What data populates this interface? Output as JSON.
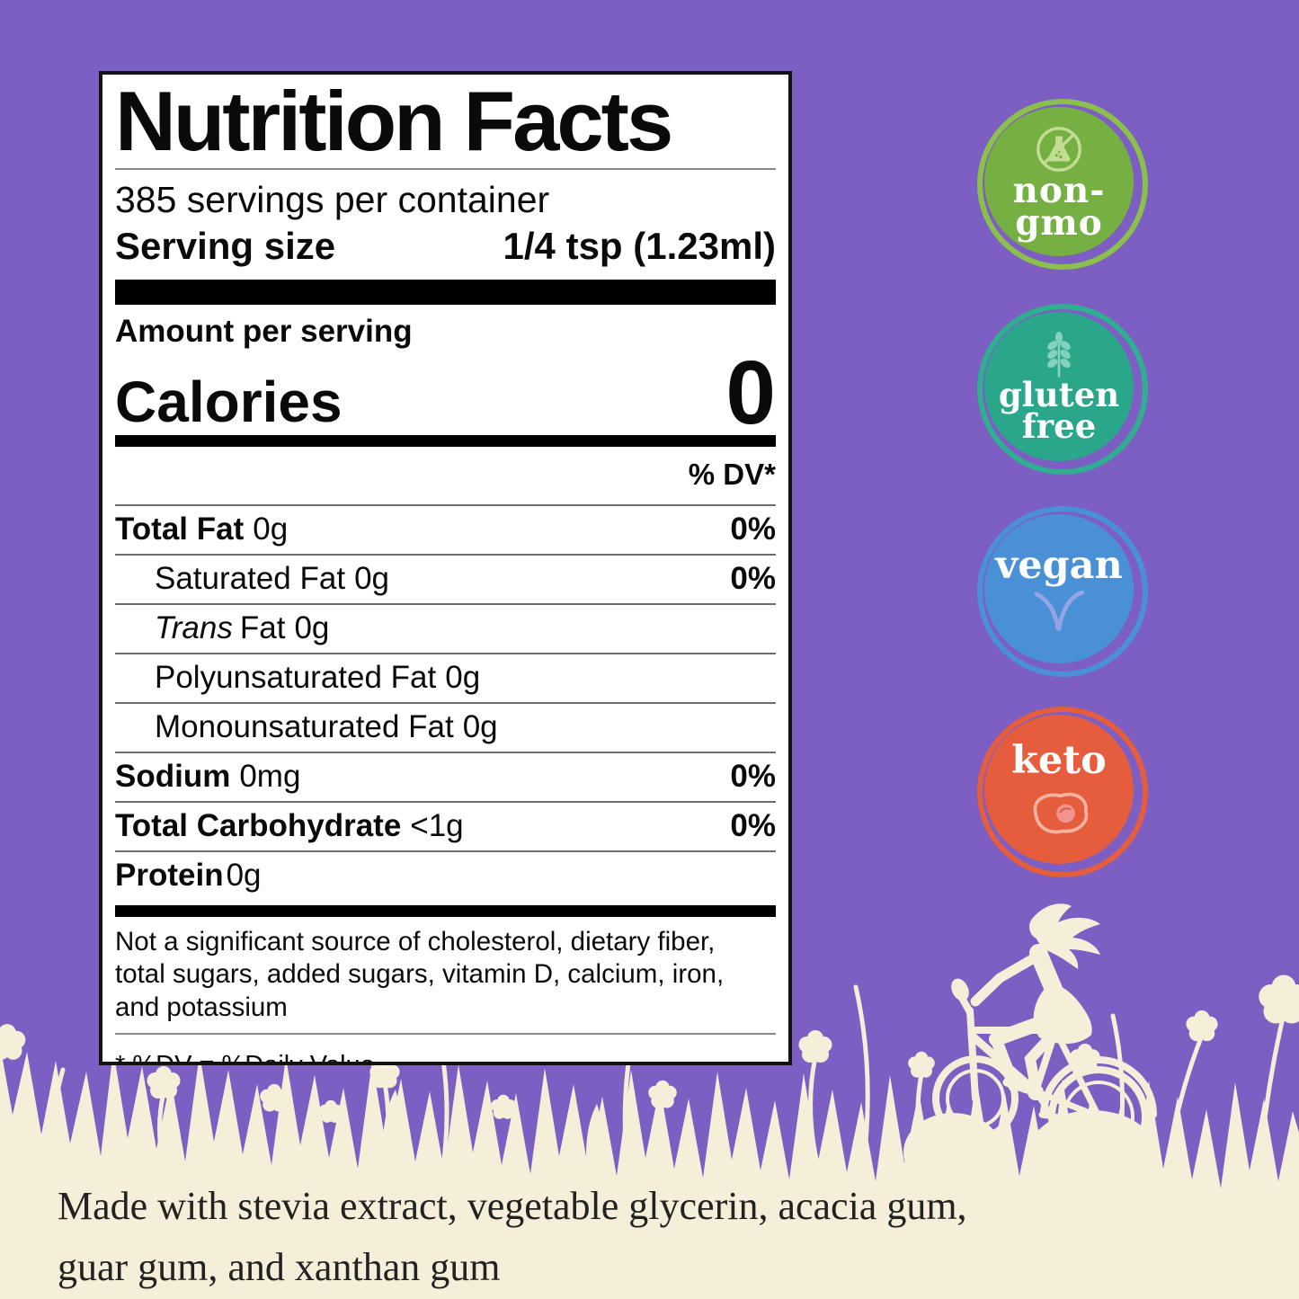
{
  "colors": {
    "background_purple": "#7d5fc4",
    "cream": "#f5eed8",
    "label_bg": "#ffffff",
    "label_border": "#121212",
    "text": "#0a0a0a"
  },
  "label": {
    "title": "Nutrition Facts",
    "servings_per_container": "385 servings per container",
    "serving_size_label": "Serving size",
    "serving_size_value": "1/4 tsp (1.23ml)",
    "amount_per_serving": "Amount per serving",
    "calories_label": "Calories",
    "calories_value": "0",
    "dv_header": "% DV*",
    "rows": [
      {
        "name": "Total Fat",
        "amount": "0g",
        "dv": "0%",
        "bold": true
      },
      {
        "name": "Saturated Fat",
        "amount": "0g",
        "dv": "0%",
        "indent": true
      },
      {
        "italic": "Trans",
        "name": "Fat",
        "amount": "0g",
        "dv": "",
        "indent": true
      },
      {
        "name": "Polyunsaturated Fat",
        "amount": "0g",
        "dv": "",
        "indent": true
      },
      {
        "name": "Monounsaturated Fat",
        "amount": "0g",
        "dv": "",
        "indent": true
      },
      {
        "name": "Sodium",
        "amount": "0mg",
        "dv": "0%",
        "bold": true
      },
      {
        "name": "Total Carbohydrate",
        "amount": "<1g",
        "dv": "0%",
        "bold": true
      },
      {
        "name": "Protein",
        "amount": "0g",
        "dv": "",
        "bold": true,
        "tight": true
      }
    ],
    "footnote_lines": [
      "Not a significant source of cholesterol, dietary fiber,",
      "total sugars, added sugars, vitamin D, calcium, iron,",
      "and potassium"
    ],
    "dv_note": "* %DV = %Daily Value"
  },
  "badges": [
    {
      "id": "non-gmo",
      "lines": [
        "non-",
        "gmo"
      ],
      "fill_color": "#76b043",
      "ring_color": "#8bc04a",
      "icon": "no-gmo-flask-icon",
      "icon_color": "#c3dd92"
    },
    {
      "id": "gluten-free",
      "lines": [
        "gluten",
        "free"
      ],
      "fill_color": "#2aa78b",
      "ring_color": "#2fae90",
      "icon": "wheat-icon",
      "icon_color": "#84d2bd"
    },
    {
      "id": "vegan",
      "lines": [
        "vegan"
      ],
      "fill_color": "#4a90d6",
      "ring_color": "#4a90d6",
      "icon": "sprout-icon",
      "icon_color": "#94a4e5"
    },
    {
      "id": "keto",
      "lines": [
        "keto"
      ],
      "fill_color": "#e55d3c",
      "ring_color": "#e55d3c",
      "icon": "fried-egg-icon",
      "icon_color": "#f5b3a0",
      "icon_accent": "#f2948e",
      "icon_accent_dark": "#d9604a"
    }
  ],
  "ingredients": {
    "lines": [
      "Made with stevia extract, vegetable glycerin, acacia gum,",
      "guar gum, and xanthan gum"
    ]
  },
  "decoration": {
    "description": "cream silhouette meadow: grass, clover flowers on stems, girl riding a bicycle"
  }
}
